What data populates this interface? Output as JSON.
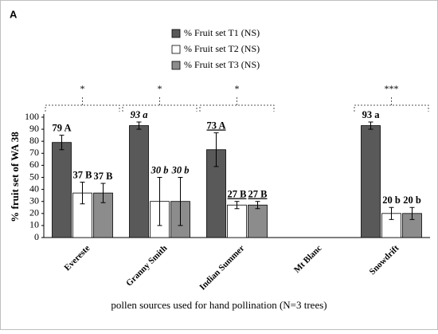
{
  "panel_label": "A",
  "chart_data": {
    "type": "bar",
    "categories": [
      "Evereste",
      "Granny Smith",
      "Indian Summer",
      "Mt Blanc",
      "Snowdrift"
    ],
    "series": [
      {
        "name": "% Fruit set T1 (NS)",
        "color": "#595959",
        "values": [
          79,
          93,
          73,
          null,
          93
        ],
        "errors": [
          6,
          3,
          14,
          null,
          3
        ],
        "value_labels": [
          "79 A",
          "93 a",
          "73 A",
          null,
          "93 a"
        ]
      },
      {
        "name": "% Fruit set T2 (NS)",
        "color": "#ffffff",
        "values": [
          37,
          30,
          27,
          null,
          20
        ],
        "errors": [
          9,
          20,
          3,
          null,
          5
        ],
        "value_labels": [
          "37 B",
          "30 b",
          "27 B",
          null,
          "20 b"
        ]
      },
      {
        "name": "% Fruit set T3 (NS)",
        "color": "#8c8c8c",
        "values": [
          37,
          30,
          27,
          null,
          20
        ],
        "errors": [
          8,
          20,
          3,
          null,
          5
        ],
        "value_labels": [
          "37 B",
          "30 b",
          "27 B",
          null,
          "20 b"
        ]
      }
    ],
    "significance": [
      "*",
      "*",
      "*",
      null,
      "***"
    ],
    "ylabel": "% fruit set of WA 38",
    "xlabel": "pollen sources used for hand pollination (N=3 trees)",
    "ylim": [
      0,
      100
    ],
    "yticks": [
      0,
      10,
      20,
      30,
      40,
      50,
      60,
      70,
      80,
      90,
      100
    ],
    "grid": false
  }
}
